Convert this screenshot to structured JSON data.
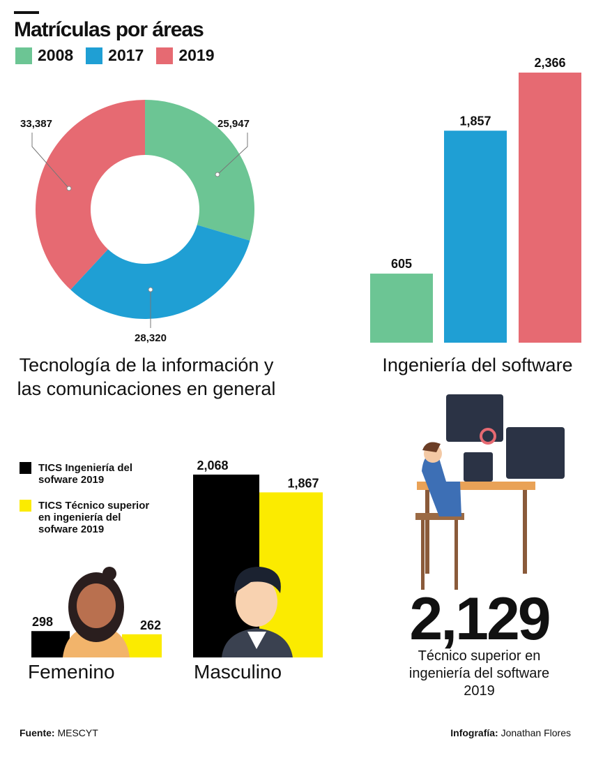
{
  "title": "Matrículas por áreas",
  "legend": [
    {
      "label": "2008",
      "color": "#6cc594"
    },
    {
      "label": "2017",
      "color": "#1f9fd4"
    },
    {
      "label": "2019",
      "color": "#e66a72"
    }
  ],
  "chart_data": [
    {
      "type": "pie",
      "donut": true,
      "caption": "Tecnología de la información y las comunicaciones en general",
      "categories": [
        "2008",
        "2017",
        "2019"
      ],
      "values": [
        25947,
        28320,
        33387
      ],
      "labels": [
        "25,947",
        "28,320",
        "33,387"
      ]
    },
    {
      "type": "bar",
      "caption": "Ingeniería del software",
      "categories": [
        "2008",
        "2017",
        "2019"
      ],
      "values": [
        605,
        1857,
        2366
      ],
      "labels": [
        "605",
        "1,857",
        "2,366"
      ]
    },
    {
      "type": "bar",
      "categories": [
        "Femenino",
        "Masculino"
      ],
      "series": [
        {
          "name": "TICS Ingeniería del sofware 2019",
          "color": "#000000",
          "values": [
            298,
            2068
          ],
          "labels": [
            "298",
            "2,068"
          ]
        },
        {
          "name": "TICS Técnico superior en ingeniería del sofware 2019",
          "color": "#fbeb00",
          "values": [
            262,
            1867
          ],
          "labels": [
            "262",
            "1,867"
          ]
        }
      ]
    }
  ],
  "highlight": {
    "value": "2,129",
    "caption_lines": [
      "Técnico superior en",
      "ingeniería del  software",
      "2019"
    ]
  },
  "footer": {
    "source_label": "Fuente:",
    "source": "MESCYT",
    "credit_label": "Infografía:",
    "credit": "Jonathan Flores"
  }
}
